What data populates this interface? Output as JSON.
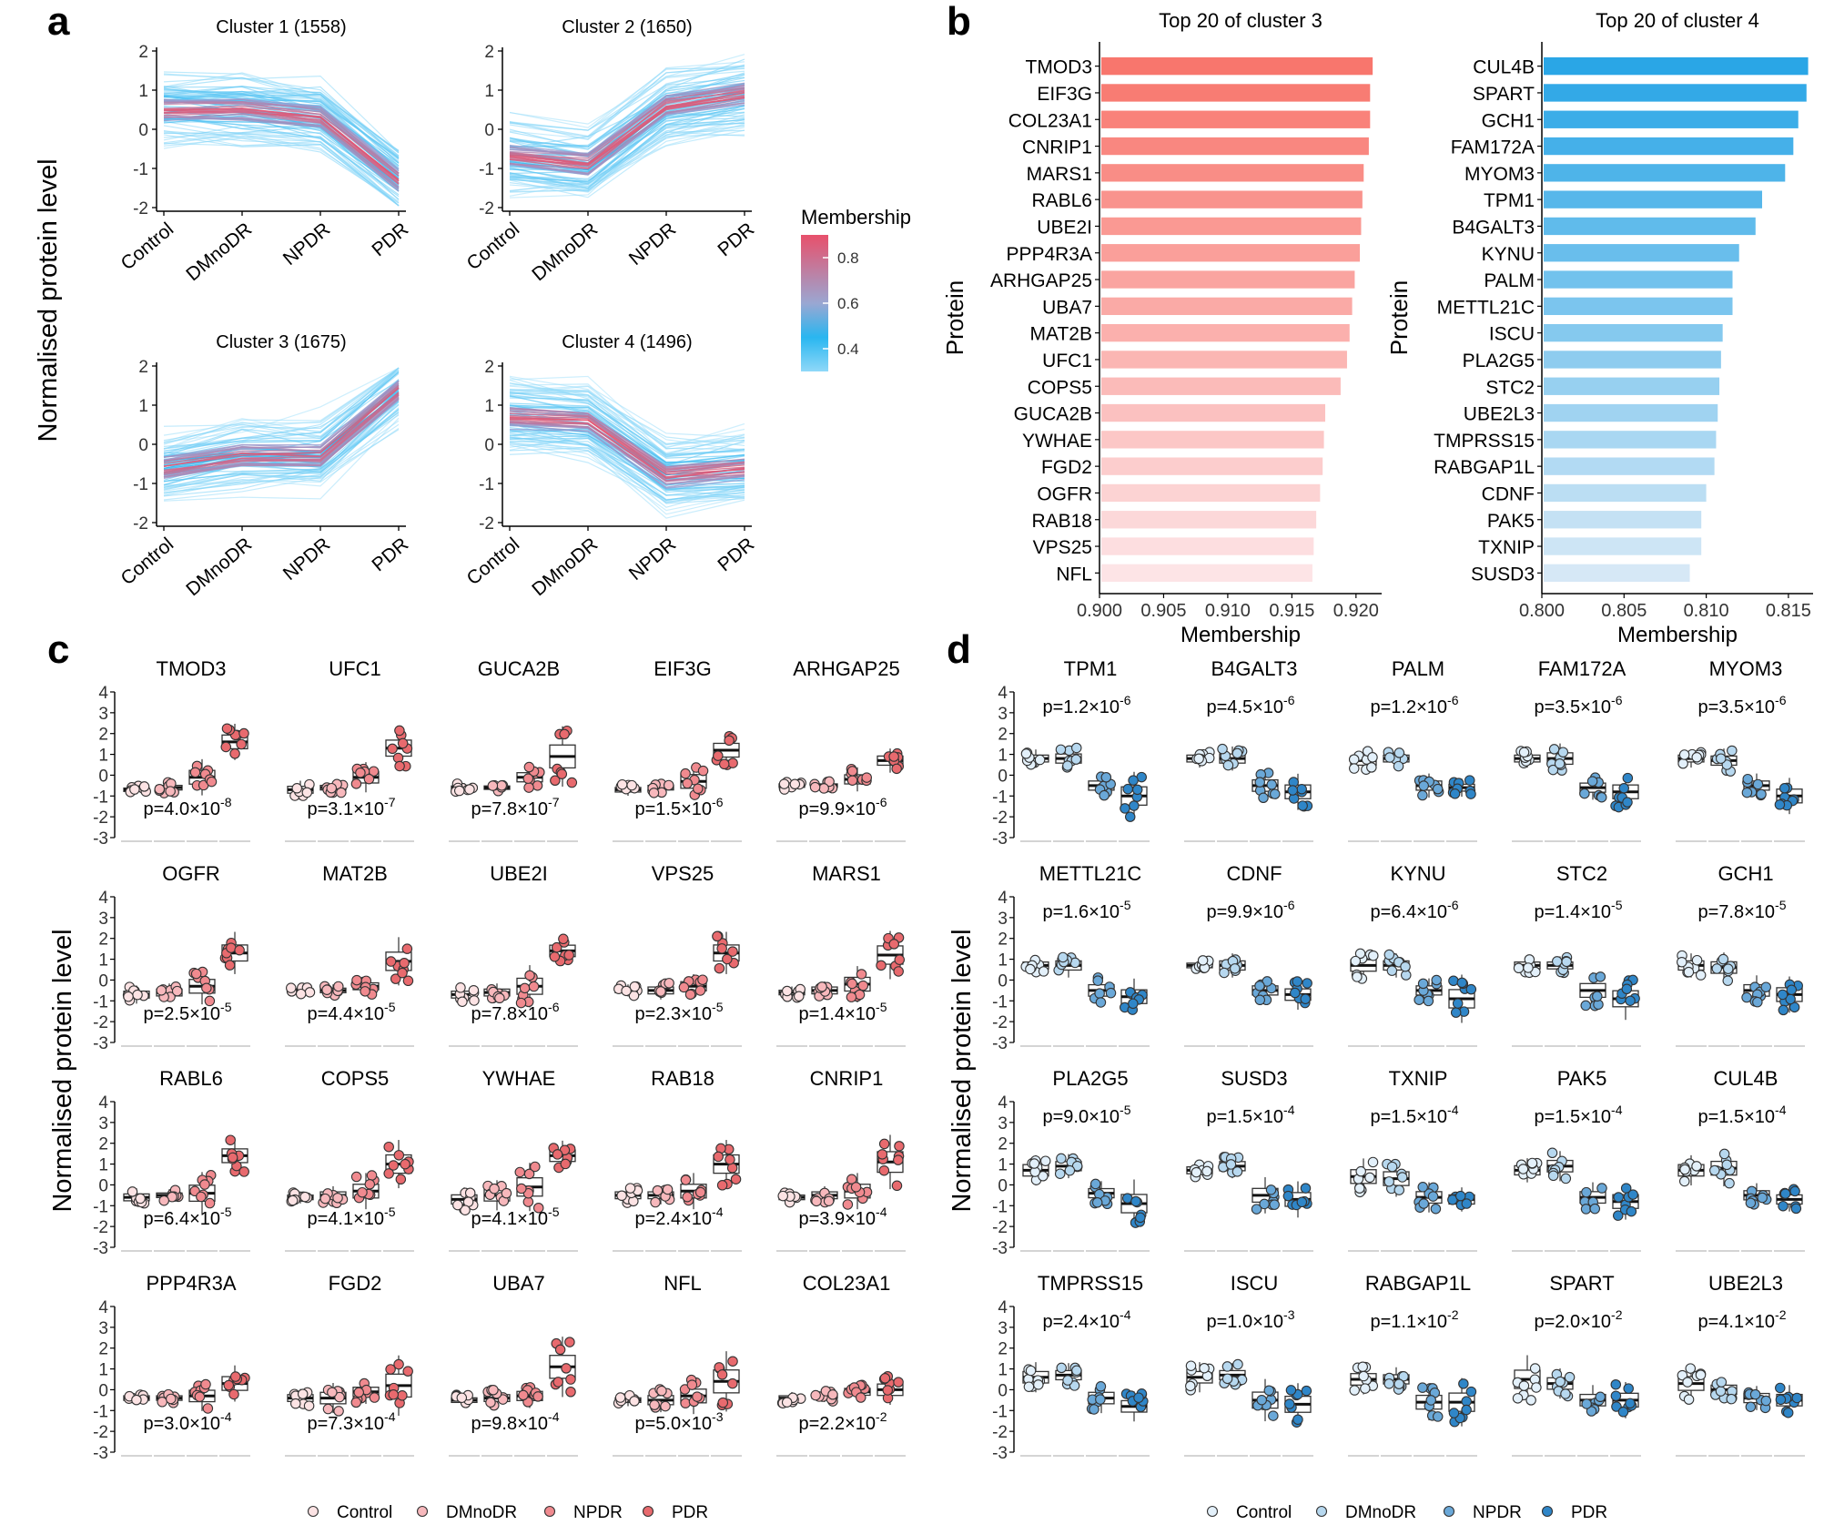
{
  "panel_labels": [
    "a",
    "b",
    "c",
    "d"
  ],
  "colors": {
    "red": "#f8766d",
    "blue": "#2aa6e6",
    "line_blue": "#1fb0ee",
    "line_red": "#e8506b",
    "c_ctrl": "#fce3e4",
    "c_dm": "#f7b8bc",
    "c_npdr": "#f08a8f",
    "c_pdr": "#e86a6e",
    "d_ctrl": "#e3f0fa",
    "d_dm": "#b7d8ef",
    "d_npdr": "#6aa8d8",
    "d_pdr": "#2f86c8"
  },
  "chart_data": [
    {
      "id": "a",
      "type": "line",
      "ylabel": "Normalised protein level",
      "categories": [
        "Control",
        "DMnoDR",
        "NPDR",
        "PDR"
      ],
      "ylim": [
        -2,
        2
      ],
      "yticks": [
        "2",
        "1",
        "0",
        "-1",
        "-2"
      ],
      "legend": {
        "title": "Membership",
        "ticks": [
          "0.8",
          "0.6",
          "0.4"
        ],
        "range": [
          0.3,
          0.9
        ]
      },
      "clusters": [
        {
          "title": "Cluster 1 (1558)",
          "center": [
            0.5,
            0.5,
            0.3,
            -1.3
          ]
        },
        {
          "title": "Cluster 2 (1650)",
          "center": [
            -0.7,
            -0.9,
            0.6,
            0.9
          ]
        },
        {
          "title": "Cluster 3 (1675)",
          "center": [
            -0.6,
            -0.3,
            -0.3,
            1.4
          ]
        },
        {
          "title": "Cluster 4 (1496)",
          "center": [
            0.7,
            0.6,
            -0.8,
            -0.6
          ]
        }
      ]
    },
    {
      "id": "b",
      "type": "bar",
      "orientation": "horizontal",
      "ylabel": "Protein",
      "xlabel": "Membership",
      "charts": [
        {
          "title": "Top 20 of cluster 3",
          "xlim": [
            0.9,
            0.922
          ],
          "xticks": [
            "0.900",
            "0.905",
            "0.910",
            "0.915",
            "0.920"
          ],
          "xtick_values": [
            0.9,
            0.905,
            0.91,
            0.915,
            0.92
          ],
          "categories": [
            "TMOD3",
            "EIF3G",
            "COL23A1",
            "CNRIP1",
            "MARS1",
            "RABL6",
            "UBE2I",
            "PPP4R3A",
            "ARHGAP25",
            "UBA7",
            "MAT2B",
            "UFC1",
            "COPS5",
            "GUCA2B",
            "YWHAE",
            "FGD2",
            "OGFR",
            "RAB18",
            "VPS25",
            "NFL"
          ],
          "values": [
            0.9213,
            0.9211,
            0.9211,
            0.921,
            0.9206,
            0.9205,
            0.9204,
            0.9203,
            0.9199,
            0.9197,
            0.9195,
            0.9193,
            0.9188,
            0.9176,
            0.9175,
            0.9174,
            0.9172,
            0.9169,
            0.9167,
            0.9166
          ]
        },
        {
          "title": "Top 20 of cluster 4",
          "xlim": [
            0.8,
            0.8165
          ],
          "xticks": [
            "0.800",
            "0.805",
            "0.810",
            "0.815"
          ],
          "xtick_values": [
            0.8,
            0.805,
            0.81,
            0.815
          ],
          "categories": [
            "CUL4B",
            "SPART",
            "GCH1",
            "FAM172A",
            "MYOM3",
            "TPM1",
            "B4GALT3",
            "KYNU",
            "PALM",
            "METTL21C",
            "ISCU",
            "PLA2G5",
            "STC2",
            "UBE2L3",
            "TMPRSS15",
            "RABGAP1L",
            "CDNF",
            "PAK5",
            "TXNIP",
            "SUSD3"
          ],
          "values": [
            0.8162,
            0.8161,
            0.8156,
            0.8153,
            0.8148,
            0.8134,
            0.813,
            0.812,
            0.8116,
            0.8116,
            0.811,
            0.8109,
            0.8108,
            0.8107,
            0.8106,
            0.8105,
            0.81,
            0.8097,
            0.8097,
            0.809
          ]
        }
      ]
    },
    {
      "id": "c",
      "type": "box",
      "ylabel": "Normalised protein level",
      "ylim": [
        -3,
        4
      ],
      "yticks": [
        "4",
        "3",
        "2",
        "1",
        "0",
        "-1",
        "-2",
        "-3"
      ],
      "groups": [
        "Control",
        "DMnoDR",
        "NPDR",
        "PDR"
      ],
      "legend": [
        "Control",
        "DMnoDR",
        "NPDR",
        "PDR"
      ],
      "pvalue_position": "bottom",
      "proteins": [
        {
          "name": "TMOD3",
          "p": "p=4.0×10",
          "exp": "-8",
          "med": [
            -0.7,
            -0.6,
            -0.1,
            1.6
          ],
          "spread": [
            0.15,
            0.2,
            0.6,
            0.6
          ]
        },
        {
          "name": "UFC1",
          "p": "p=3.1×10",
          "exp": "-7",
          "med": [
            -0.7,
            -0.6,
            -0.1,
            1.3
          ],
          "spread": [
            0.3,
            0.2,
            0.5,
            0.7
          ]
        },
        {
          "name": "GUCA2B",
          "p": "p=7.8×10",
          "exp": "-7",
          "med": [
            -0.6,
            -0.6,
            -0.1,
            0.9
          ],
          "spread": [
            0.15,
            0.15,
            0.4,
            1.0
          ]
        },
        {
          "name": "EIF3G",
          "p": "p=1.5×10",
          "exp": "-6",
          "med": [
            -0.7,
            -0.6,
            -0.3,
            1.2
          ],
          "spread": [
            0.2,
            0.2,
            0.6,
            0.6
          ]
        },
        {
          "name": "ARHGAP25",
          "p": "p=9.9×10",
          "exp": "-6",
          "med": [
            -0.5,
            -0.5,
            -0.2,
            0.7
          ],
          "spread": [
            0.15,
            0.15,
            0.4,
            0.4
          ]
        },
        {
          "name": "OGFR",
          "p": "p=2.5×10",
          "exp": "-5",
          "med": [
            -0.7,
            -0.6,
            -0.3,
            1.3
          ],
          "spread": [
            0.3,
            0.3,
            0.6,
            0.7
          ]
        },
        {
          "name": "MAT2B",
          "p": "p=4.4×10",
          "exp": "-5",
          "med": [
            -0.5,
            -0.5,
            -0.3,
            0.9
          ],
          "spread": [
            0.15,
            0.2,
            0.3,
            0.8
          ]
        },
        {
          "name": "UBE2I",
          "p": "p=7.8×10",
          "exp": "-6",
          "med": [
            -0.7,
            -0.6,
            -0.3,
            1.4
          ],
          "spread": [
            0.3,
            0.3,
            0.7,
            0.5
          ]
        },
        {
          "name": "VPS25",
          "p": "p=2.3×10",
          "exp": "-5",
          "med": [
            -0.5,
            -0.5,
            -0.3,
            1.3
          ],
          "spread": [
            0.2,
            0.3,
            0.4,
            0.7
          ]
        },
        {
          "name": "MARS1",
          "p": "p=1.4×10",
          "exp": "-5",
          "med": [
            -0.6,
            -0.5,
            -0.2,
            1.2
          ],
          "spread": [
            0.2,
            0.3,
            0.6,
            0.8
          ]
        },
        {
          "name": "RABL6",
          "p": "p=6.4×10",
          "exp": "-5",
          "med": [
            -0.6,
            -0.5,
            -0.4,
            1.4
          ],
          "spread": [
            0.3,
            0.2,
            0.7,
            0.6
          ]
        },
        {
          "name": "COPS5",
          "p": "p=4.1×10",
          "exp": "-5",
          "med": [
            -0.6,
            -0.5,
            -0.3,
            1.0
          ],
          "spread": [
            0.2,
            0.3,
            0.6,
            0.8
          ]
        },
        {
          "name": "YWHAE",
          "p": "p=4.1×10",
          "exp": "-5",
          "med": [
            -0.7,
            -0.5,
            -0.1,
            1.4
          ],
          "spread": [
            0.4,
            0.5,
            0.8,
            0.5
          ]
        },
        {
          "name": "RAB18",
          "p": "p=2.4×10",
          "exp": "-4",
          "med": [
            -0.5,
            -0.5,
            -0.3,
            1.0
          ],
          "spread": [
            0.3,
            0.3,
            0.6,
            0.8
          ]
        },
        {
          "name": "CNRIP1",
          "p": "p=3.9×10",
          "exp": "-4",
          "med": [
            -0.6,
            -0.5,
            -0.3,
            1.1
          ],
          "spread": [
            0.2,
            0.3,
            0.6,
            0.9
          ]
        },
        {
          "name": "PPP4R3A",
          "p": "p=3.0×10",
          "exp": "-4",
          "med": [
            -0.4,
            -0.4,
            -0.3,
            0.3
          ],
          "spread": [
            0.2,
            0.2,
            0.5,
            0.6
          ]
        },
        {
          "name": "FGD2",
          "p": "p=7.3×10",
          "exp": "-4",
          "med": [
            -0.4,
            -0.4,
            -0.1,
            0.2
          ],
          "spread": [
            0.3,
            0.5,
            0.4,
            1.0
          ]
        },
        {
          "name": "UBA7",
          "p": "p=9.8×10",
          "exp": "-4",
          "med": [
            -0.5,
            -0.4,
            -0.3,
            1.1
          ],
          "spread": [
            0.2,
            0.3,
            0.4,
            1.0
          ]
        },
        {
          "name": "NFL",
          "p": "p=5.0×10",
          "exp": "-3",
          "med": [
            -0.5,
            -0.5,
            -0.3,
            0.4
          ],
          "spread": [
            0.2,
            0.4,
            0.6,
            1.0
          ]
        },
        {
          "name": "COL23A1",
          "p": "p=2.2×10",
          "exp": "-2",
          "med": [
            -0.4,
            -0.3,
            -0.1,
            0.0
          ],
          "spread": [
            0.2,
            0.2,
            0.3,
            0.5
          ]
        }
      ]
    },
    {
      "id": "d",
      "type": "box",
      "ylabel": "Normalised protein level",
      "ylim": [
        -3,
        4
      ],
      "yticks": [
        "4",
        "3",
        "2",
        "1",
        "0",
        "-1",
        "-2",
        "-3"
      ],
      "groups": [
        "Control",
        "DMnoDR",
        "NPDR",
        "PDR"
      ],
      "legend": [
        "Control",
        "DMnoDR",
        "NPDR",
        "PDR"
      ],
      "pvalue_position": "top",
      "proteins": [
        {
          "name": "TPM1",
          "p": "p=1.2×10",
          "exp": "-6",
          "med": [
            0.8,
            0.8,
            -0.5,
            -1.0
          ],
          "spread": [
            0.3,
            0.4,
            0.4,
            0.8
          ]
        },
        {
          "name": "B4GALT3",
          "p": "p=4.5×10",
          "exp": "-6",
          "med": [
            0.8,
            0.8,
            -0.5,
            -0.8
          ],
          "spread": [
            0.3,
            0.4,
            0.5,
            0.6
          ]
        },
        {
          "name": "PALM",
          "p": "p=1.2×10",
          "exp": "-6",
          "med": [
            0.7,
            0.8,
            -0.5,
            -0.6
          ],
          "spread": [
            0.4,
            0.3,
            0.4,
            0.3
          ]
        },
        {
          "name": "FAM172A",
          "p": "p=3.5×10",
          "exp": "-6",
          "med": [
            0.8,
            0.8,
            -0.6,
            -0.8
          ],
          "spread": [
            0.3,
            0.5,
            0.4,
            0.6
          ]
        },
        {
          "name": "MYOM3",
          "p": "p=3.5×10",
          "exp": "-6",
          "med": [
            0.8,
            0.7,
            -0.5,
            -1.0
          ],
          "spread": [
            0.3,
            0.4,
            0.4,
            0.6
          ]
        },
        {
          "name": "METTL21C",
          "p": "p=1.6×10",
          "exp": "-5",
          "med": [
            0.7,
            0.7,
            -0.5,
            -0.8
          ],
          "spread": [
            0.3,
            0.4,
            0.5,
            0.6
          ]
        },
        {
          "name": "CDNF",
          "p": "p=9.9×10",
          "exp": "-6",
          "med": [
            0.7,
            0.7,
            -0.5,
            -0.7
          ],
          "spread": [
            0.2,
            0.4,
            0.4,
            0.5
          ]
        },
        {
          "name": "KYNU",
          "p": "p=6.4×10",
          "exp": "-6",
          "med": [
            0.7,
            0.7,
            -0.5,
            -0.9
          ],
          "spread": [
            0.5,
            0.4,
            0.4,
            0.8
          ]
        },
        {
          "name": "STC2",
          "p": "p=1.4×10",
          "exp": "-5",
          "med": [
            0.7,
            0.7,
            -0.5,
            -0.9
          ],
          "spread": [
            0.3,
            0.3,
            0.6,
            0.7
          ]
        },
        {
          "name": "GCH1",
          "p": "p=7.8×10",
          "exp": "-5",
          "med": [
            0.7,
            0.6,
            -0.5,
            -0.7
          ],
          "spread": [
            0.4,
            0.5,
            0.5,
            0.6
          ]
        },
        {
          "name": "PLA2G5",
          "p": "p=9.0×10",
          "exp": "-5",
          "med": [
            0.7,
            0.9,
            -0.4,
            -0.9
          ],
          "spread": [
            0.5,
            0.4,
            0.4,
            0.8
          ]
        },
        {
          "name": "SUSD3",
          "p": "p=1.5×10",
          "exp": "-4",
          "med": [
            0.7,
            0.9,
            -0.5,
            -0.7
          ],
          "spread": [
            0.3,
            0.4,
            0.6,
            0.6
          ]
        },
        {
          "name": "TXNIP",
          "p": "p=1.5×10",
          "exp": "-4",
          "med": [
            0.4,
            0.3,
            -0.6,
            -0.7
          ],
          "spread": [
            0.6,
            0.6,
            0.5,
            0.4
          ]
        },
        {
          "name": "PAK5",
          "p": "p=1.5×10",
          "exp": "-4",
          "med": [
            0.7,
            0.9,
            -0.6,
            -0.8
          ],
          "spread": [
            0.4,
            0.5,
            0.5,
            0.6
          ]
        },
        {
          "name": "CUL4B",
          "p": "p=1.5×10",
          "exp": "-4",
          "med": [
            0.7,
            0.8,
            -0.5,
            -0.7
          ],
          "spread": [
            0.5,
            0.6,
            0.4,
            0.4
          ]
        },
        {
          "name": "TMPRSS15",
          "p": "p=2.4×10",
          "exp": "-4",
          "med": [
            0.6,
            0.7,
            -0.4,
            -0.8
          ],
          "spread": [
            0.5,
            0.4,
            0.5,
            0.5
          ]
        },
        {
          "name": "ISCU",
          "p": "p=1.0×10",
          "exp": "-3",
          "med": [
            0.6,
            0.7,
            -0.5,
            -0.7
          ],
          "spread": [
            0.5,
            0.4,
            0.7,
            0.7
          ]
        },
        {
          "name": "RABGAP1L",
          "p": "p=1.1×10",
          "exp": "-2",
          "med": [
            0.5,
            0.5,
            -0.6,
            -0.6
          ],
          "spread": [
            0.5,
            0.4,
            0.6,
            0.8
          ]
        },
        {
          "name": "SPART",
          "p": "p=2.0×10",
          "exp": "-2",
          "med": [
            0.5,
            0.3,
            -0.5,
            -0.5
          ],
          "spread": [
            0.8,
            0.5,
            0.5,
            0.6
          ]
        },
        {
          "name": "UBE2L3",
          "p": "p=4.1×10",
          "exp": "-2",
          "med": [
            0.3,
            0.0,
            -0.4,
            -0.5
          ],
          "spread": [
            0.6,
            0.4,
            0.4,
            0.5
          ]
        }
      ]
    }
  ]
}
